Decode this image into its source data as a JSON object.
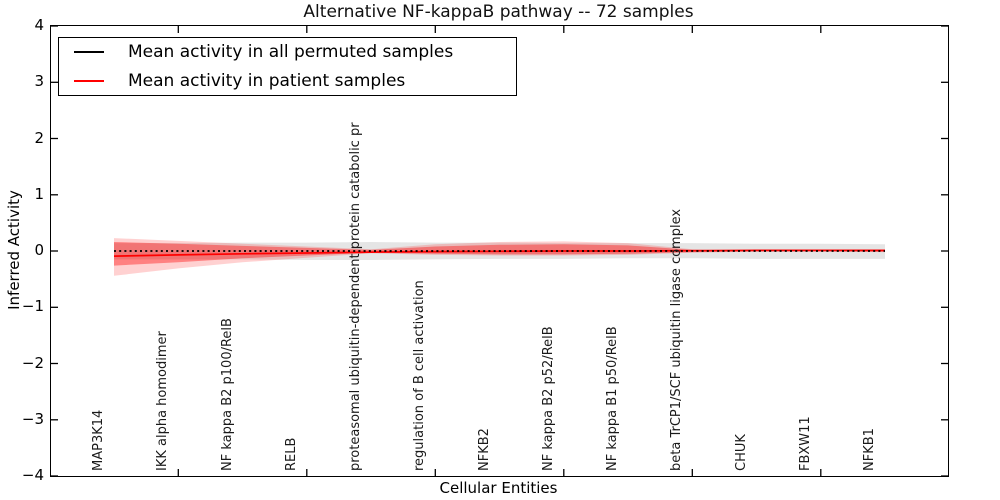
{
  "chart_data": {
    "type": "line",
    "title": "Alternative NF-kappaB pathway -- 72 samples",
    "xlabel": "Cellular Entities",
    "ylabel": "Inferred Activity",
    "ylim": [
      -4,
      4
    ],
    "yticks": [
      4,
      3,
      2,
      1,
      0,
      -1,
      -2,
      -3,
      -4
    ],
    "grid": false,
    "legend_position": "upper left",
    "categories": [
      "MAP3K14",
      "IKK alpha homodimer",
      "NF kappa B2 p100/RelB",
      "RELB",
      "proteasomal ubiquitin-dependent protein catabolic pr",
      "regulation of B cell activation",
      "NFKB2",
      "NF kappa B2 p52/RelB",
      "NF kappa B1 p50/RelB",
      "beta TrCP1/SCF ubiquitin ligase complex",
      "CHUK",
      "FBXW11",
      "NFKB1"
    ],
    "series": [
      {
        "name": "Mean activity in all permuted samples",
        "color": "#000000",
        "style": "dotted",
        "values": [
          0,
          0,
          0,
          0,
          0,
          0,
          0,
          0,
          0,
          0,
          0,
          0,
          0
        ]
      },
      {
        "name": "Mean activity in patient samples",
        "color": "#ff0000",
        "style": "solid",
        "values": [
          -0.09,
          -0.07,
          -0.05,
          -0.035,
          -0.02,
          -0.01,
          -0.005,
          0,
          0,
          0.005,
          0.01,
          0.01,
          0.01
        ]
      }
    ],
    "bands": [
      {
        "name": "permuted-samples-std",
        "color": "#000000",
        "opacity": 0.1,
        "upper": [
          0.14,
          0.14,
          0.15,
          0.15,
          0.16,
          0.15,
          0.15,
          0.14,
          0.14,
          0.14,
          0.13,
          0.13,
          0.12
        ],
        "lower": [
          -0.15,
          -0.15,
          -0.15,
          -0.16,
          -0.16,
          -0.15,
          -0.14,
          -0.14,
          -0.13,
          -0.13,
          -0.14,
          -0.14,
          -0.14
        ]
      },
      {
        "name": "patient-samples-std-outer",
        "color": "#ff0000",
        "opacity": 0.18,
        "upper": [
          0.23,
          0.18,
          0.13,
          0.08,
          0.03,
          0.12,
          0.16,
          0.17,
          0.14,
          0.03,
          0.01,
          0.01,
          0.02
        ],
        "lower": [
          -0.44,
          -0.31,
          -0.2,
          -0.12,
          -0.04,
          -0.07,
          -0.08,
          -0.08,
          -0.07,
          -0.03,
          -0.01,
          -0.01,
          -0.02
        ]
      },
      {
        "name": "patient-samples-std-inner",
        "color": "#ff0000",
        "opacity": 0.38,
        "upper": [
          0.16,
          0.13,
          0.09,
          0.055,
          0.02,
          0.08,
          0.11,
          0.12,
          0.1,
          0.02,
          0.007,
          0.005,
          0.015
        ],
        "lower": [
          -0.26,
          -0.2,
          -0.13,
          -0.08,
          -0.03,
          -0.05,
          -0.06,
          -0.06,
          -0.05,
          -0.02,
          -0.008,
          -0.008,
          -0.015
        ]
      }
    ]
  }
}
